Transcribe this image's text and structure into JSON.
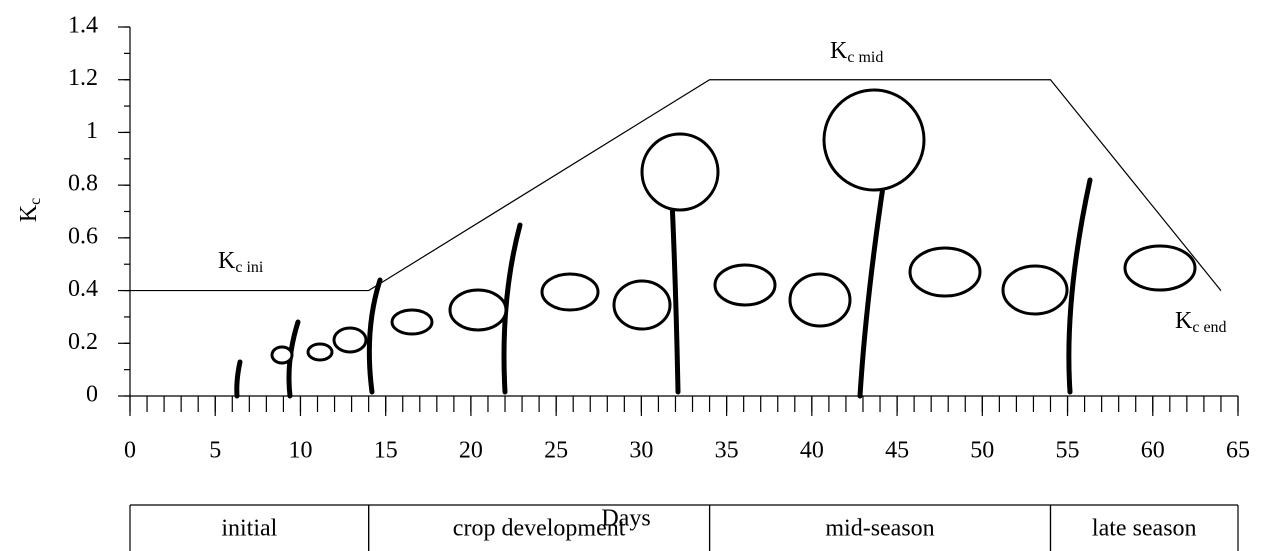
{
  "chart_data": {
    "type": "line",
    "x": [
      0,
      14,
      34,
      54,
      64
    ],
    "series": [
      {
        "color": "#000000",
        "values": [
          0.4,
          0.4,
          1.2,
          1.2,
          0.4
        ]
      }
    ],
    "xlim": [
      0,
      65
    ],
    "xticks": [
      0,
      5,
      10,
      15,
      20,
      25,
      30,
      35,
      40,
      45,
      50,
      55,
      60,
      65
    ],
    "ylim": [
      0,
      1.4
    ],
    "yticks": [
      0,
      0.2,
      0.4,
      0.6,
      0.8,
      1,
      1.2,
      1.4
    ],
    "x_minor_tick_step": 1,
    "y_minor_tick_step": 0.1,
    "xlabel": "Days",
    "ylabel": {
      "main": "K",
      "sub": "c"
    },
    "annotations": [
      {
        "main": "K",
        "sub": "c ini"
      },
      {
        "main": "K",
        "sub": "c mid"
      },
      {
        "main": "K",
        "sub": "c end"
      }
    ],
    "stages": [
      {
        "name": "initial",
        "start": 0,
        "end": 14
      },
      {
        "name": "crop development",
        "start": 14,
        "end": 34
      },
      {
        "name": "mid-season",
        "start": 34,
        "end": 54
      },
      {
        "name": "late season",
        "start": 54,
        "end": 65
      }
    ]
  }
}
